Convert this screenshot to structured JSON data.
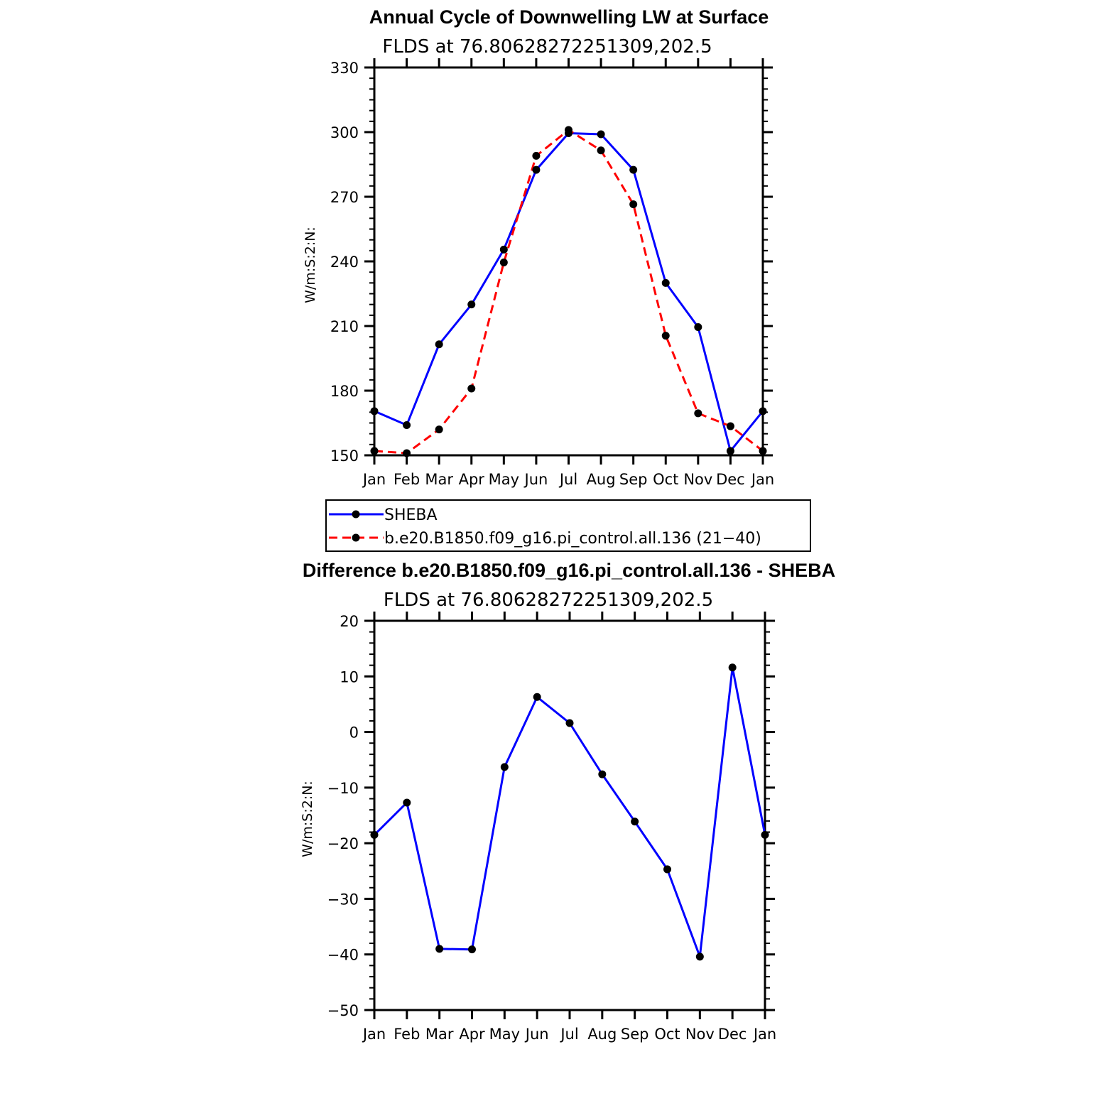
{
  "chart_data": [
    {
      "type": "line",
      "title": "Annual Cycle of Downwelling LW at Surface",
      "subtitle": "FLDS at 76.80628272251309,202.5",
      "xlabel": "",
      "ylabel": "W/m:S:2:N:",
      "categories": [
        "Jan",
        "Feb",
        "Mar",
        "Apr",
        "May",
        "Jun",
        "Jul",
        "Aug",
        "Sep",
        "Oct",
        "Nov",
        "Dec",
        "Jan"
      ],
      "ylim": [
        150,
        330
      ],
      "yticks": [
        150,
        180,
        210,
        240,
        270,
        300,
        330
      ],
      "series": [
        {
          "name": "SHEBA",
          "color": "#0000ff",
          "dash": "solid",
          "values": [
            170.5,
            164,
            201.5,
            220,
            245.5,
            282.5,
            299.5,
            299,
            282.5,
            230,
            209.5,
            152,
            170.5
          ]
        },
        {
          "name": "b.e20.B1850.f09_g16.pi_control.all.136 (21−40)",
          "color": "#ff0000",
          "dash": "dashed",
          "values": [
            152,
            151,
            162,
            181,
            239.5,
            289,
            301,
            291.5,
            266.5,
            205.5,
            169.5,
            163.5,
            152
          ]
        }
      ],
      "legend_placement": "below"
    },
    {
      "type": "line",
      "title": "Difference b.e20.B1850.f09_g16.pi_control.all.136 - SHEBA",
      "subtitle": "FLDS at 76.80628272251309,202.5",
      "xlabel": "",
      "ylabel": "W/m:S:2:N:",
      "categories": [
        "Jan",
        "Feb",
        "Mar",
        "Apr",
        "May",
        "Jun",
        "Jul",
        "Aug",
        "Sep",
        "Oct",
        "Nov",
        "Dec",
        "Jan"
      ],
      "ylim": [
        -50,
        20
      ],
      "yticks": [
        -50,
        -40,
        -30,
        -20,
        -10,
        0,
        10,
        20
      ],
      "ytick_labels": [
        "−50",
        "−40",
        "−30",
        "−20",
        "−10",
        "0",
        "10",
        "20"
      ],
      "series": [
        {
          "color": "#0000ff",
          "dash": "solid",
          "values": [
            -18.5,
            -12.7,
            -39,
            -39.1,
            -6.3,
            6.3,
            1.6,
            -7.6,
            -16.1,
            -24.7,
            -40.4,
            11.6,
            -18.5
          ]
        }
      ]
    }
  ]
}
